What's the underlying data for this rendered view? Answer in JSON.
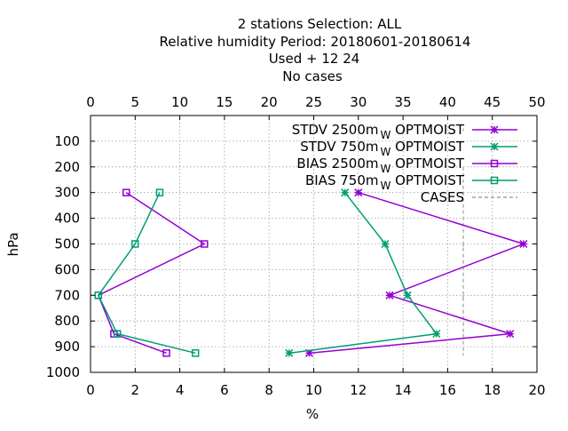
{
  "chart_data": {
    "type": "line",
    "title_lines": [
      "2 stations Selection: ALL",
      "Relative humidity  Period: 20180601-20180614",
      "Used   + 12 24",
      "No cases"
    ],
    "xlabel": "%",
    "ylabel": "hPa",
    "x_bottom": {
      "min": 0,
      "max": 20,
      "ticks": [
        0,
        2,
        4,
        6,
        8,
        10,
        12,
        14,
        16,
        18,
        20
      ]
    },
    "x_top": {
      "min": 0,
      "max": 50,
      "ticks": [
        0,
        5,
        10,
        15,
        20,
        25,
        30,
        35,
        40,
        45,
        50
      ]
    },
    "y": {
      "min": 1000,
      "max": 0,
      "ticks": [
        100,
        200,
        300,
        400,
        500,
        600,
        700,
        800,
        900,
        1000
      ]
    },
    "grid": true,
    "legend_position": "top-right",
    "series": [
      {
        "name": "STDV 2500m",
        "sub": "W",
        "suffix": " OPTMOIST",
        "color": "#9400d3",
        "marker": "star",
        "points": [
          [
            12.0,
            300
          ],
          [
            19.4,
            500
          ],
          [
            13.4,
            700
          ],
          [
            18.8,
            850
          ],
          [
            9.8,
            925
          ]
        ]
      },
      {
        "name": "STDV 750m",
        "sub": "W",
        "suffix": " OPTMOIST",
        "color": "#009e73",
        "marker": "star",
        "points": [
          [
            11.4,
            300
          ],
          [
            13.2,
            500
          ],
          [
            14.2,
            700
          ],
          [
            15.5,
            850
          ],
          [
            8.9,
            925
          ]
        ]
      },
      {
        "name": "BIAS 2500m",
        "sub": "W",
        "suffix": " OPTMOIST",
        "color": "#9400d3",
        "marker": "square",
        "points": [
          [
            1.6,
            300
          ],
          [
            5.1,
            500
          ],
          [
            0.35,
            700
          ],
          [
            1.05,
            850
          ],
          [
            3.4,
            925
          ]
        ]
      },
      {
        "name": "BIAS 750m",
        "sub": "W",
        "suffix": " OPTMOIST",
        "color": "#009e73",
        "marker": "square",
        "points": [
          [
            3.1,
            300
          ],
          [
            2.0,
            500
          ],
          [
            0.35,
            700
          ],
          [
            1.2,
            850
          ],
          [
            4.7,
            925
          ]
        ]
      }
    ],
    "cases": {
      "name": "CASES",
      "color": "#a0a0a0",
      "segments": [
        [
          16.7,
          50,
          0,
          15
        ],
        [
          16.7,
          300,
          0,
          15
        ],
        [
          16.7,
          500,
          0,
          15
        ],
        [
          16.7,
          700,
          0,
          15
        ],
        [
          16.7,
          850,
          0,
          15
        ],
        [
          16.7,
          925,
          0,
          15
        ]
      ]
    }
  }
}
